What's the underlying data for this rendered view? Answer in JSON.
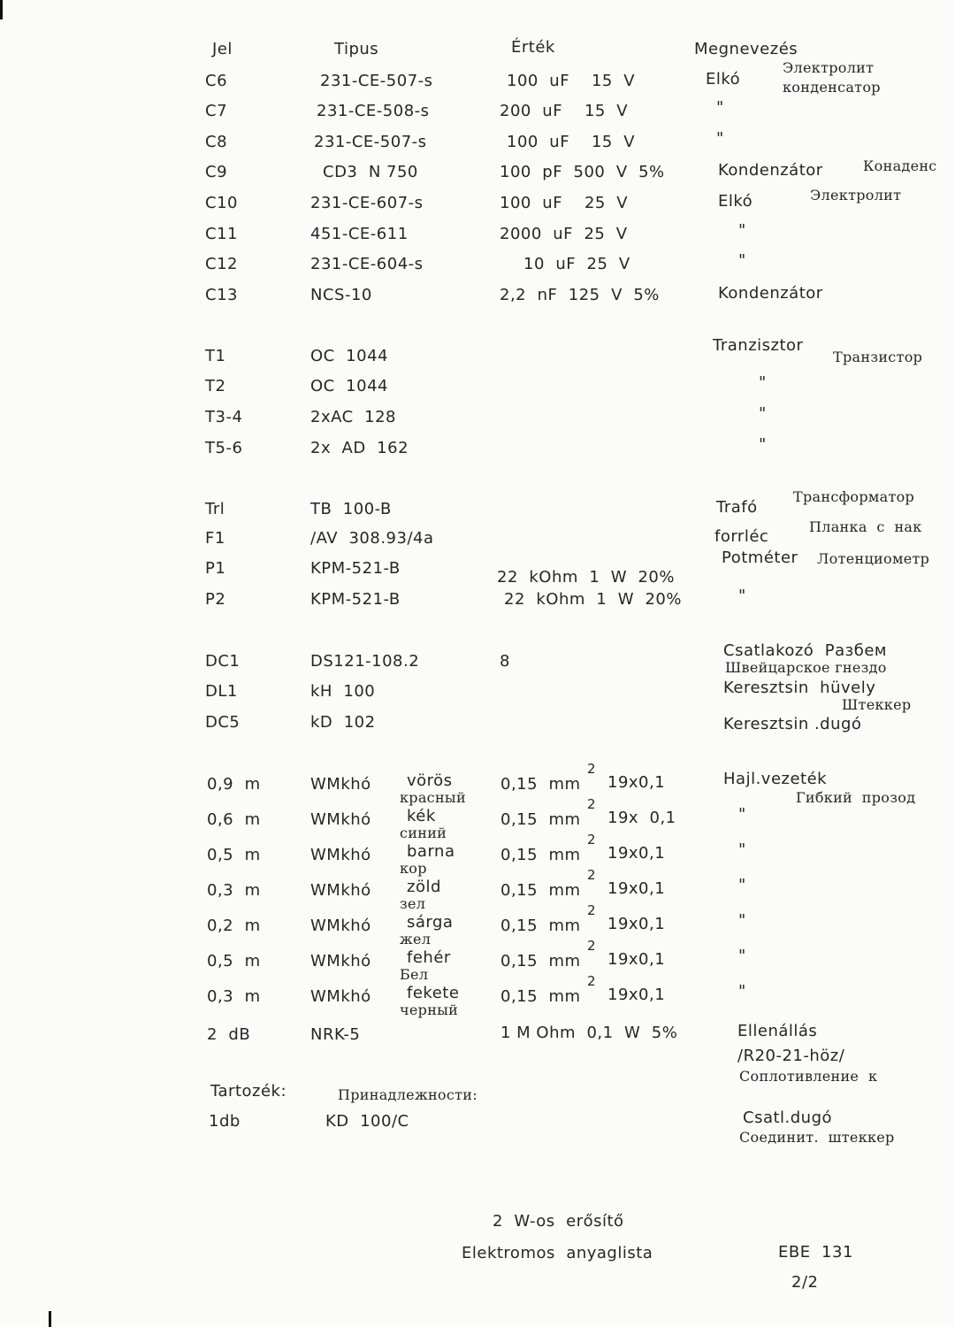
{
  "header": {
    "jel": "Jel",
    "tipus": "Tipus",
    "ertek": "Érték",
    "megnevezes": "Megnevezés"
  },
  "rows": [
    {
      "jel": "C6",
      "tipus": "231-CE-507-s",
      "ertek": "100  uF    15  V",
      "megnevezes": "Elkó",
      "orosz": "Электролит",
      "orosz2": "конденсатор"
    },
    {
      "jel": "C7",
      "tipus": "231-CE-508-s",
      "ertek": "200  uF    15  V",
      "megnevezes": "\""
    },
    {
      "jel": "C8",
      "tipus": "231-CE-507-s",
      "ertek": "100  uF    15  V",
      "megnevezes": "\""
    },
    {
      "jel": "C9",
      "tipus": "CD3  N 750",
      "ertek": "100  pF  500  V  5%",
      "megnevezes": "Kondenzátor",
      "orosz": "Конаденс"
    },
    {
      "jel": "C10",
      "tipus": "231-CE-607-s",
      "ertek": "100  uF    25  V",
      "megnevezes": "Elkó",
      "orosz": "Электролит"
    },
    {
      "jel": "C11",
      "tipus": "451-CE-611",
      "ertek": "2000  uF  25  V",
      "megnevezes": "\""
    },
    {
      "jel": "C12",
      "tipus": "231-CE-604-s",
      "ertek": "10  uF  25  V",
      "megnevezes": "\""
    },
    {
      "jel": "C13",
      "tipus": "NCS-10",
      "ertek": "2,2  nF  125  V  5%",
      "megnevezes": "Kondenzátor"
    },
    {
      "jel": "T1",
      "tipus": "OC  1044",
      "ertek": "",
      "megnevezes": "Tranzisztor",
      "orosz": "Транзистор"
    },
    {
      "jel": "T2",
      "tipus": "OC  1044",
      "ertek": "",
      "megnevezes": "\""
    },
    {
      "jel": "T3-4",
      "tipus": "2xAC  128",
      "ertek": "",
      "megnevezes": "\""
    },
    {
      "jel": "T5-6",
      "tipus": "2x  AD  162",
      "ertek": "",
      "megnevezes": "\""
    },
    {
      "jel": "Trl",
      "tipus": "TB  100-B",
      "ertek": "",
      "megnevezes": "Trafó",
      "orosz": "Трансформатор"
    },
    {
      "jel": "F1",
      "tipus": "/AV  308.93/4a",
      "ertek": "",
      "megnevezes": "forrléc",
      "orosz": "Планка  с  нак"
    },
    {
      "jel": "P1",
      "tipus": "KPM-521-B",
      "ertek": "22  kOhm  1  W  20%",
      "megnevezes": "Potméter",
      "orosz": "Лотенциометр"
    },
    {
      "jel": "P2",
      "tipus": "KPM-521-B",
      "ertek": "22  kOhm  1  W  20%",
      "megnevezes": "\""
    },
    {
      "jel": "DC1",
      "tipus": "DS121-108.2",
      "ertek": "8",
      "megnevezes": "Csatlakozó  Разбем",
      "orosz2": "Швейцарское гнездо"
    },
    {
      "jel": "DL1",
      "tipus": "kH  100",
      "ertek": "",
      "megnevezes": "Keresztsin  hüvely",
      "orosz2": "Штеккер"
    },
    {
      "jel": "DC5",
      "tipus": "kD  102",
      "ertek": "",
      "megnevezes": "Keresztsin .dugó"
    }
  ],
  "wires": [
    {
      "jel": "0,9  m",
      "tipus": "WMkhó",
      "szin": "vörös",
      "szin_ru": "красный",
      "ertek": "0,15  mm",
      "exp": "2",
      "meret": "19x0,1",
      "megnevezes": "Hajl.vezeték",
      "orosz": "Гибкий  прозод"
    },
    {
      "jel": "0,6  m",
      "tipus": "WMkhó",
      "szin": "kék",
      "szin_ru": "синий",
      "ertek": "0,15  mm",
      "exp": "2",
      "meret": "19x  0,1",
      "megnevezes": "\""
    },
    {
      "jel": "0,5  m",
      "tipus": "WMkhó",
      "szin": "barna",
      "szin_ru": "кор",
      "ertek": "0,15  mm",
      "exp": "2",
      "meret": "19x0,1",
      "megnevezes": "\""
    },
    {
      "jel": "0,3  m",
      "tipus": "WMkhó",
      "szin": "zöld",
      "szin_ru": "зел",
      "ertek": "0,15  mm",
      "exp": "2",
      "meret": "19x0,1",
      "megnevezes": "\""
    },
    {
      "jel": "0,2  m",
      "tipus": "WMkhó",
      "szin": "sárga",
      "szin_ru": "жел",
      "ertek": "0,15  mm",
      "exp": "2",
      "meret": "19x0,1",
      "megnevezes": "\""
    },
    {
      "jel": "0,5  m",
      "tipus": "WMkhó",
      "szin": "fehér",
      "szin_ru": "Бел",
      "ertek": "0,15  mm",
      "exp": "2",
      "meret": "19x0,1",
      "megnevezes": "\""
    },
    {
      "jel": "0,3  m",
      "tipus": "WMkhó",
      "szin": "fekete",
      "szin_ru": "черный",
      "ertek": "0,15  mm",
      "exp": "2",
      "meret": "19x0,1",
      "megnevezes": "\""
    }
  ],
  "resistor": {
    "jel": "2  dB",
    "tipus": "NRK-5",
    "ertek": "1 M Ohm  0,1  W  5%",
    "megnevezes": "Ellenállás",
    "megjegyzes": "/R20-21-höz/",
    "orosz": "Соплотивление  к"
  },
  "accessories": {
    "label": "Tartozék:",
    "label_ru": "Принадлежности:",
    "qty": "1db",
    "tipus": "KD  100/C",
    "megnevezes": "Csatl.dugó",
    "orosz": "Соединит.  штеккер"
  },
  "footer": {
    "title": "2  W-os  erősítő",
    "subtitle": "Elektromos  anyaglista",
    "doc_id": "EBE  131",
    "page": "2/2"
  }
}
